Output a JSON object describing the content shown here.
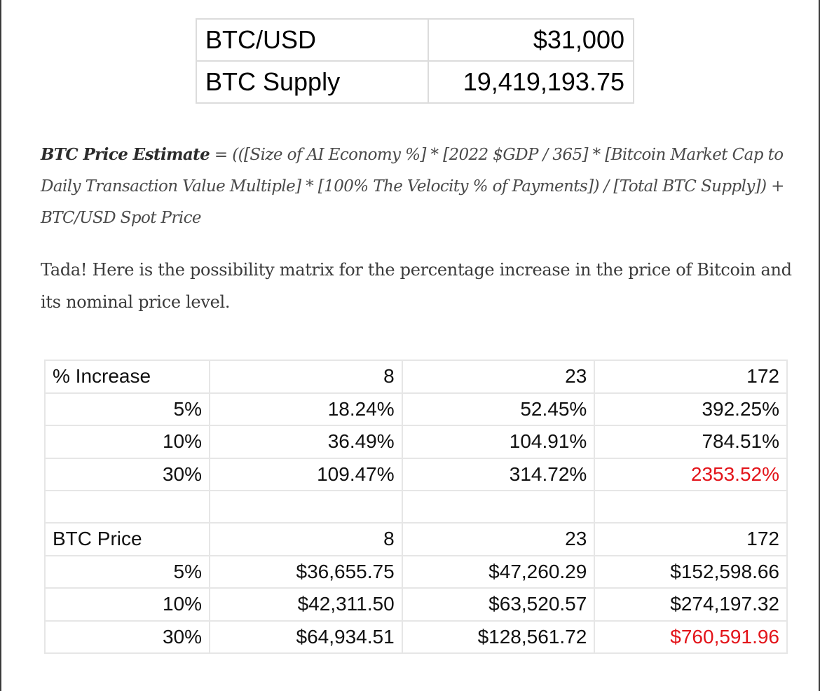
{
  "summary": {
    "rows": [
      {
        "label": "BTC/USD",
        "value": "$31,000"
      },
      {
        "label": "BTC Supply",
        "value": "19,419,193.75"
      }
    ]
  },
  "formula": {
    "head": "BTC Price Estimate",
    "eq": " = ",
    "body": "(([Size of AI Economy %] * [2022 $GDP / 365] * [Bitcoin Market Cap to Daily Transaction Value Multiple] * [100% The Velocity % of Payments]) / [Total BTC Supply]) + BTC/USD Spot Price"
  },
  "intro": "Tada! Here is the possibility matrix for the percentage increase in the price of Bitcoin and its nominal price level.",
  "increase_table": {
    "header": "% Increase",
    "columns": [
      "8",
      "23",
      "172"
    ],
    "rows": [
      {
        "label": "5%",
        "values": [
          "18.24%",
          "52.45%",
          "392.25%"
        ]
      },
      {
        "label": "10%",
        "values": [
          "36.49%",
          "104.91%",
          "784.51%"
        ]
      },
      {
        "label": "30%",
        "values": [
          "109.47%",
          "314.72%",
          "2353.52%"
        ]
      }
    ]
  },
  "price_table": {
    "header": "BTC Price",
    "columns": [
      "8",
      "23",
      "172"
    ],
    "rows": [
      {
        "label": "5%",
        "values": [
          "$36,655.75",
          "$47,260.29",
          "$152,598.66"
        ]
      },
      {
        "label": "10%",
        "values": [
          "$42,311.50",
          "$63,520.57",
          "$274,197.32"
        ]
      },
      {
        "label": "30%",
        "values": [
          "$64,934.51",
          "$128,561.72",
          "$760,591.96"
        ]
      }
    ]
  },
  "colors": {
    "highlight": "#e3141a",
    "grid": "#e6e6e6",
    "text": "#111111"
  }
}
